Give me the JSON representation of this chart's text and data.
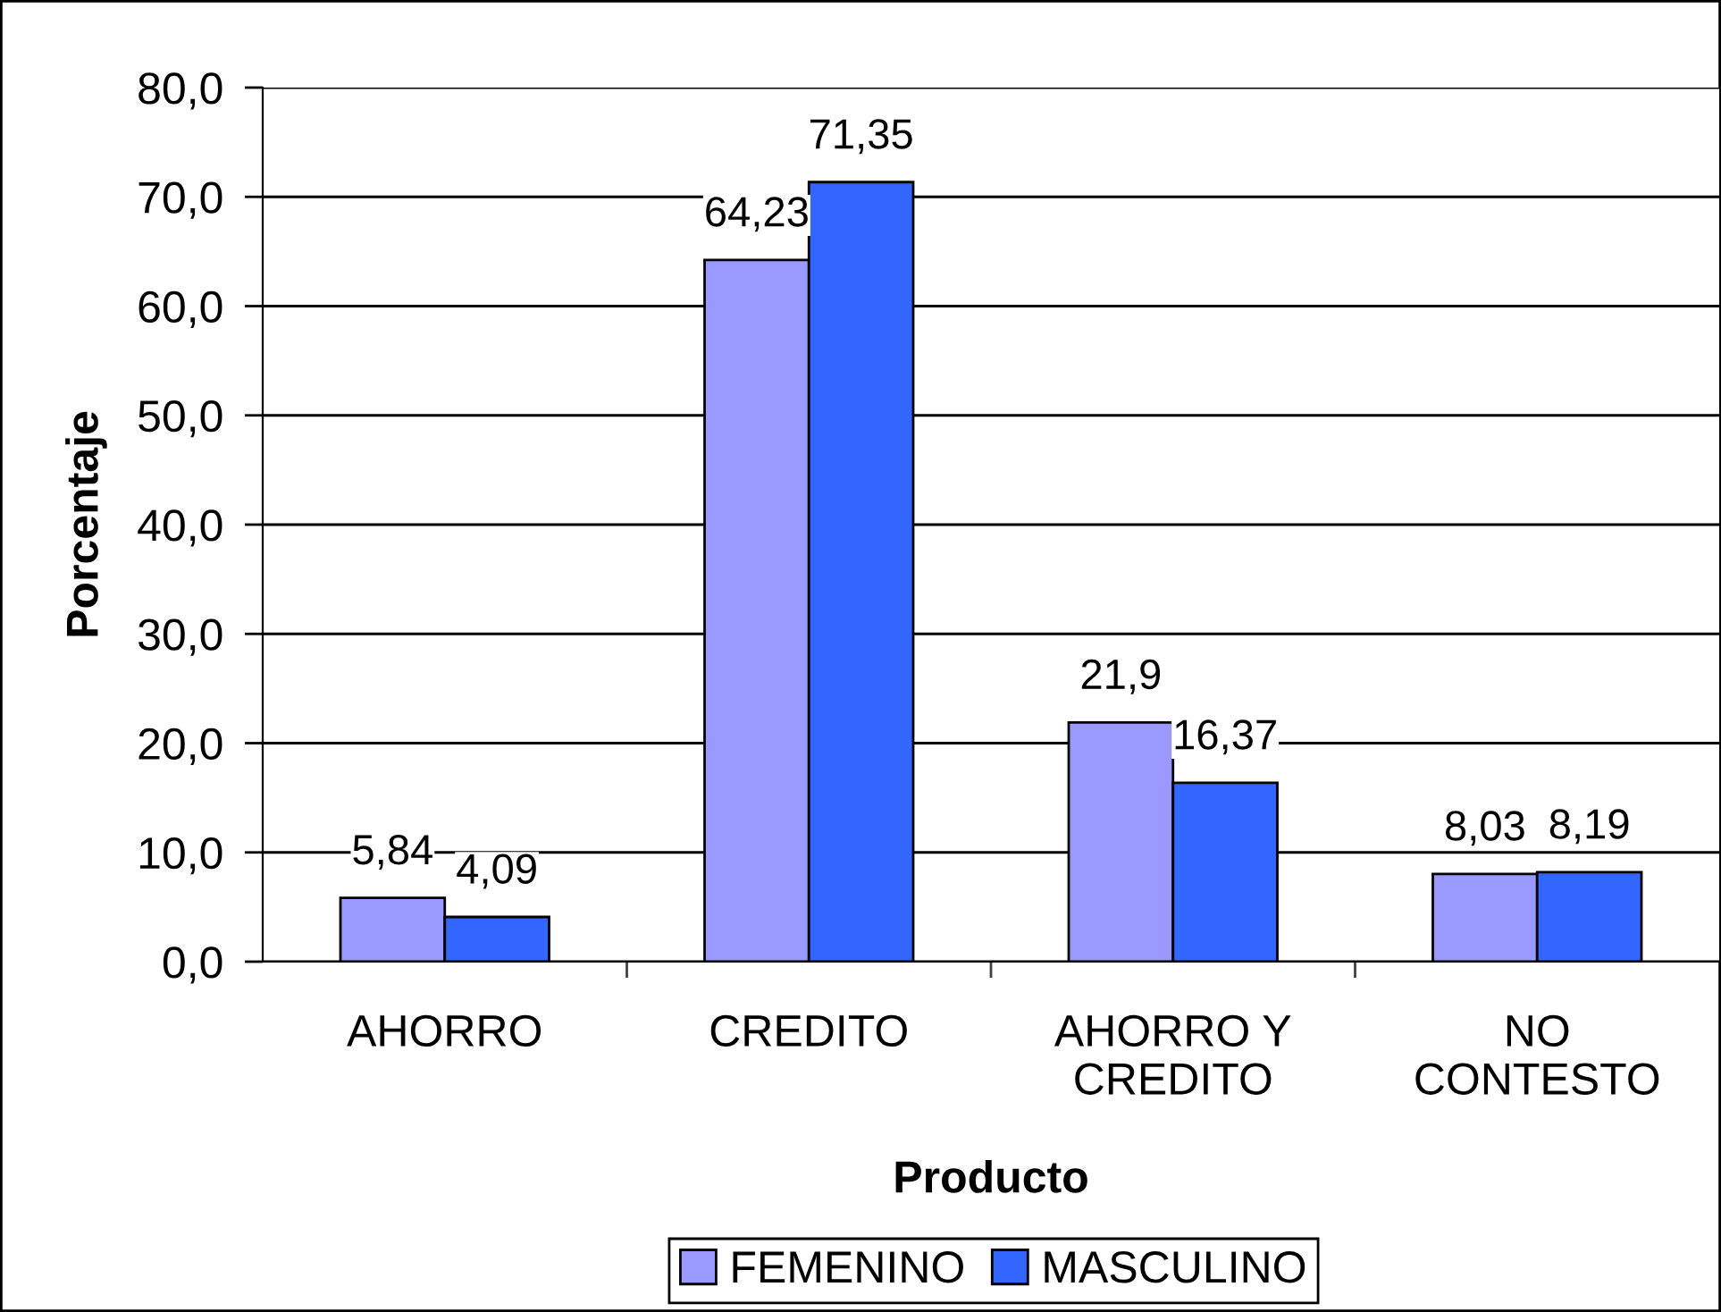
{
  "chart_data": {
    "type": "bar",
    "categories": [
      "AHORRO",
      "CREDITO",
      "AHORRO Y\nCREDITO",
      "NO\nCONTESTO"
    ],
    "series": [
      {
        "name": "FEMENINO",
        "color": "#9999ff",
        "values": [
          5.84,
          64.23,
          21.9,
          8.03
        ],
        "value_labels": [
          "5,84",
          "64,23",
          "21,9",
          "8,03"
        ]
      },
      {
        "name": "MASCULINO",
        "color": "#3366ff",
        "values": [
          4.09,
          71.35,
          16.37,
          8.19
        ],
        "value_labels": [
          "4,09",
          "71,35",
          "16,37",
          "8,19"
        ]
      }
    ],
    "xlabel": "Producto",
    "ylabel": "Porcentaje",
    "ylim": [
      0,
      80
    ],
    "yticks": [
      {
        "value": 0,
        "label": "0,0"
      },
      {
        "value": 10,
        "label": "10,0"
      },
      {
        "value": 20,
        "label": "20,0"
      },
      {
        "value": 30,
        "label": "30,0"
      },
      {
        "value": 40,
        "label": "40,0"
      },
      {
        "value": 50,
        "label": "50,0"
      },
      {
        "value": 60,
        "label": "60,0"
      },
      {
        "value": 70,
        "label": "70,0"
      },
      {
        "value": 80,
        "label": "80,0"
      }
    ],
    "grid": "y",
    "legend": "bottom"
  }
}
